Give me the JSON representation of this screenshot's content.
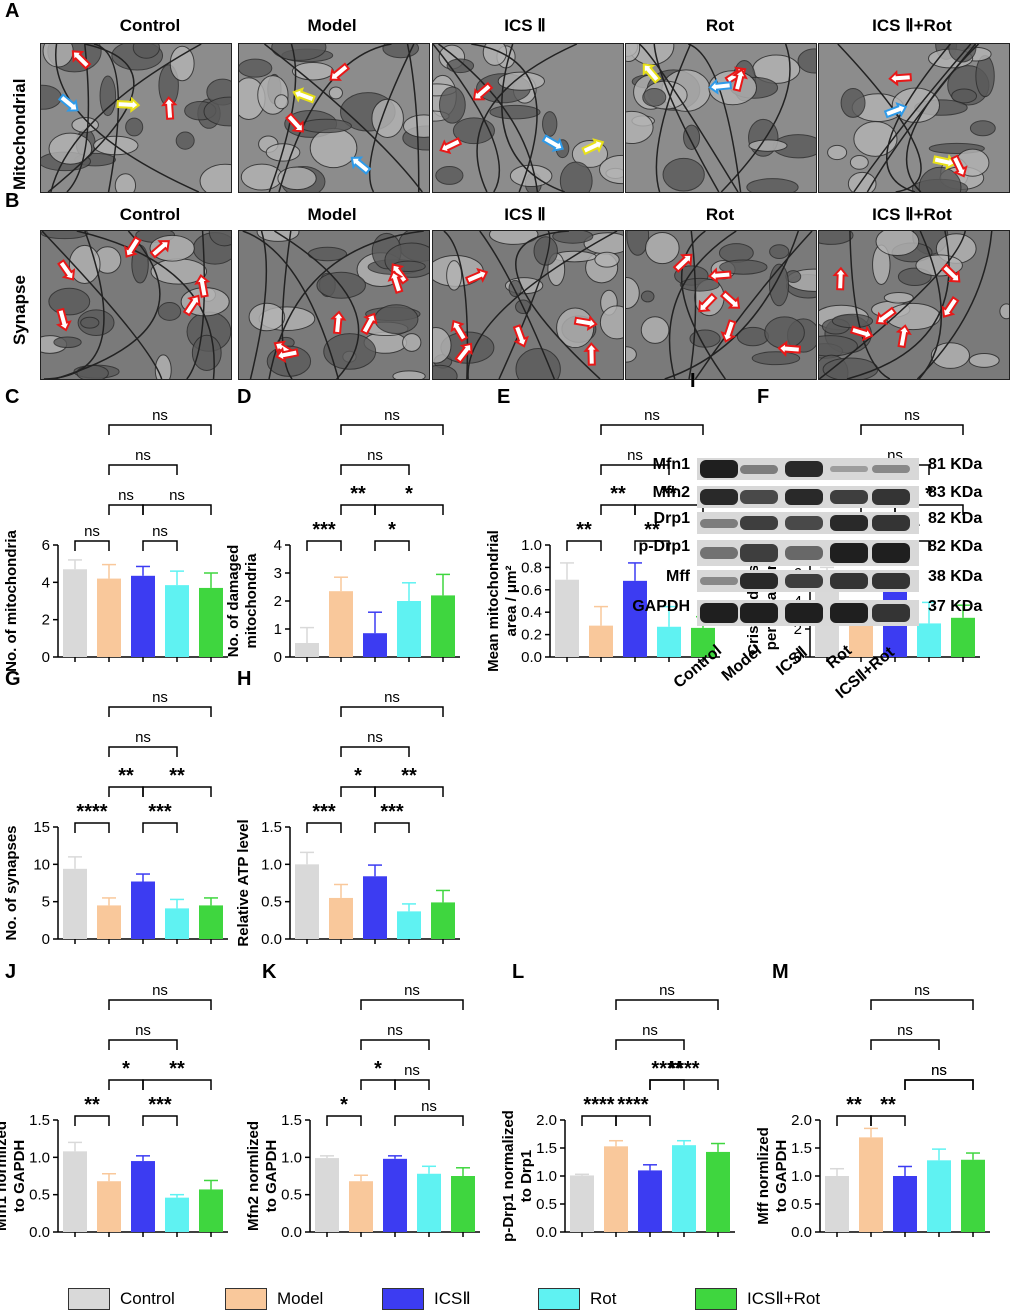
{
  "panel_letters": {
    "A": "A",
    "B": "B",
    "C": "C",
    "D": "D",
    "E": "E",
    "F": "F",
    "G": "G",
    "H": "H",
    "I": "I",
    "J": "J",
    "K": "K",
    "L": "L",
    "M": "M"
  },
  "groups": [
    "Control",
    "Model",
    "ICSⅡ",
    "Rot",
    "ICSⅡ+Rot"
  ],
  "colors": {
    "Control": "#d9d9d9",
    "Model": "#f9c89b",
    "ICSⅡ": "#3c3cf2",
    "Rot": "#5ff2f2",
    "ICSⅡ+Rot": "#3fd63f"
  },
  "micro_titles": [
    "Control",
    "Model",
    "ICS Ⅱ",
    "Rot",
    "ICS Ⅱ+Rot"
  ],
  "row_labels": {
    "A": "Mitochondrial",
    "B": "Synapse"
  },
  "wb": {
    "proteins": [
      "Mfn1",
      "Mfn2",
      "Drp1",
      "p-Drp1",
      "Mff",
      "GAPDH"
    ],
    "kda": [
      "81 KDa",
      "83 KDa",
      "82 KDa",
      "82 KDa",
      "38 KDa",
      "37 KDa"
    ],
    "lanes": [
      "Control",
      "Model",
      "ICSⅡ",
      "Rot",
      "ICSⅡ+Rot"
    ]
  },
  "legend": [
    "Control",
    "Model",
    "ICSⅡ",
    "Rot",
    "ICSⅡ+Rot"
  ],
  "chart_data": [
    {
      "id": "C",
      "type": "bar",
      "ylabel": "No. of mitochondria",
      "ylim": [
        0,
        6
      ],
      "yticks": [
        "0",
        "2",
        "4",
        "6"
      ],
      "values": [
        4.7,
        4.2,
        4.35,
        3.85,
        3.7
      ],
      "errors": [
        0.5,
        0.75,
        0.5,
        0.75,
        0.8
      ],
      "sig": [
        {
          "a": 0,
          "b": 1,
          "label": "ns"
        },
        {
          "a": 1,
          "b": 2,
          "label": "ns"
        },
        {
          "a": 2,
          "b": 3,
          "label": "ns"
        },
        {
          "a": 2,
          "b": 4,
          "label": "ns"
        },
        {
          "a": 1,
          "b": 3,
          "label": "ns"
        },
        {
          "a": 1,
          "b": 4,
          "label": "ns"
        }
      ]
    },
    {
      "id": "D",
      "type": "bar",
      "ylabel": "No. of damaged\nmitochondria",
      "ylim": [
        0,
        4
      ],
      "yticks": [
        "0",
        "1",
        "2",
        "3",
        "4"
      ],
      "values": [
        0.5,
        2.35,
        0.85,
        2.0,
        2.2
      ],
      "errors": [
        0.55,
        0.5,
        0.75,
        0.65,
        0.75
      ],
      "sig": [
        {
          "a": 0,
          "b": 1,
          "label": "***"
        },
        {
          "a": 1,
          "b": 2,
          "label": "**"
        },
        {
          "a": 2,
          "b": 3,
          "label": "*"
        },
        {
          "a": 2,
          "b": 4,
          "label": "*"
        },
        {
          "a": 1,
          "b": 3,
          "label": "ns"
        },
        {
          "a": 1,
          "b": 4,
          "label": "ns"
        }
      ]
    },
    {
      "id": "E",
      "type": "bar",
      "ylabel": "Mean mitochondrial\narea / μm²",
      "ylim": [
        0,
        1.0
      ],
      "yticks": [
        "0.0",
        "0.2",
        "0.4",
        "0.6",
        "0.8",
        "1.0"
      ],
      "values": [
        0.69,
        0.28,
        0.68,
        0.27,
        0.26
      ],
      "errors": [
        0.15,
        0.17,
        0.16,
        0.18,
        0.1
      ],
      "sig": [
        {
          "a": 0,
          "b": 1,
          "label": "**"
        },
        {
          "a": 1,
          "b": 2,
          "label": "**"
        },
        {
          "a": 2,
          "b": 3,
          "label": "**"
        },
        {
          "a": 2,
          "b": 4,
          "label": "**"
        },
        {
          "a": 1,
          "b": 3,
          "label": "ns"
        },
        {
          "a": 1,
          "b": 4,
          "label": "ns"
        }
      ]
    },
    {
      "id": "F",
      "type": "bar",
      "ylabel": "Cristae density\nper area / μm²",
      "ylim": [
        0,
        8
      ],
      "yticks": [
        "0",
        "2",
        "4",
        "6",
        "8"
      ],
      "values": [
        5.5,
        2.4,
        5.2,
        2.4,
        2.8
      ],
      "errors": [
        0.9,
        1.5,
        0.5,
        1.5,
        0.9
      ],
      "sig": [
        {
          "a": 0,
          "b": 1,
          "label": "**"
        },
        {
          "a": 1,
          "b": 2,
          "label": "**"
        },
        {
          "a": 2,
          "b": 3,
          "label": "**"
        },
        {
          "a": 2,
          "b": 4,
          "label": "*"
        },
        {
          "a": 1,
          "b": 3,
          "label": "ns"
        },
        {
          "a": 1,
          "b": 4,
          "label": "ns"
        }
      ]
    },
    {
      "id": "G",
      "type": "bar",
      "ylabel": "No. of synapses",
      "ylim": [
        0,
        15
      ],
      "yticks": [
        "0",
        "5",
        "10",
        "15"
      ],
      "values": [
        9.4,
        4.5,
        7.7,
        4.1,
        4.5
      ],
      "errors": [
        1.6,
        1.0,
        1.0,
        1.2,
        1.0
      ],
      "sig": [
        {
          "a": 0,
          "b": 1,
          "label": "****"
        },
        {
          "a": 1,
          "b": 2,
          "label": "**"
        },
        {
          "a": 2,
          "b": 3,
          "label": "***"
        },
        {
          "a": 2,
          "b": 4,
          "label": "**"
        },
        {
          "a": 1,
          "b": 3,
          "label": "ns"
        },
        {
          "a": 1,
          "b": 4,
          "label": "ns"
        }
      ]
    },
    {
      "id": "H",
      "type": "bar",
      "ylabel": "Relative ATP level",
      "ylim": [
        0,
        1.5
      ],
      "yticks": [
        "0.0",
        "0.5",
        "1.0",
        "1.5"
      ],
      "values": [
        1.0,
        0.55,
        0.84,
        0.37,
        0.49
      ],
      "errors": [
        0.16,
        0.18,
        0.15,
        0.1,
        0.16
      ],
      "sig": [
        {
          "a": 0,
          "b": 1,
          "label": "***"
        },
        {
          "a": 1,
          "b": 2,
          "label": "*"
        },
        {
          "a": 2,
          "b": 3,
          "label": "***"
        },
        {
          "a": 2,
          "b": 4,
          "label": "**"
        },
        {
          "a": 1,
          "b": 3,
          "label": "ns"
        },
        {
          "a": 1,
          "b": 4,
          "label": "ns"
        }
      ]
    },
    {
      "id": "J",
      "type": "bar",
      "ylabel": "Mfn1 normlized\nto GAPDH",
      "ylim": [
        0,
        1.5
      ],
      "yticks": [
        "0.0",
        "0.5",
        "1.0",
        "1.5"
      ],
      "values": [
        1.08,
        0.68,
        0.95,
        0.46,
        0.57
      ],
      "errors": [
        0.12,
        0.1,
        0.07,
        0.04,
        0.12
      ],
      "sig": [
        {
          "a": 0,
          "b": 1,
          "label": "**"
        },
        {
          "a": 1,
          "b": 2,
          "label": "*"
        },
        {
          "a": 2,
          "b": 3,
          "label": "***"
        },
        {
          "a": 2,
          "b": 4,
          "label": "**"
        },
        {
          "a": 1,
          "b": 3,
          "label": "ns"
        },
        {
          "a": 1,
          "b": 4,
          "label": "ns"
        }
      ]
    },
    {
      "id": "K",
      "type": "bar",
      "ylabel": "Mfn2 normlized\nto GAPDH",
      "ylim": [
        0,
        1.5
      ],
      "yticks": [
        "0.0",
        "0.5",
        "1.0",
        "1.5"
      ],
      "values": [
        0.99,
        0.68,
        0.98,
        0.78,
        0.75
      ],
      "errors": [
        0.03,
        0.08,
        0.04,
        0.1,
        0.11
      ],
      "sig": [
        {
          "a": 0,
          "b": 1,
          "label": "*"
        },
        {
          "a": 1,
          "b": 2,
          "label": "*"
        },
        {
          "a": 2,
          "b": 4,
          "label": "ns"
        },
        {
          "a": 2,
          "b": 3,
          "label": "ns"
        },
        {
          "a": 1,
          "b": 3,
          "label": "ns"
        },
        {
          "a": 1,
          "b": 4,
          "label": "ns"
        }
      ]
    },
    {
      "id": "L",
      "type": "bar",
      "ylabel": "p-Drp1 normalized\nto Drp1",
      "ylim": [
        0,
        2.0
      ],
      "yticks": [
        "0.0",
        "0.5",
        "1.0",
        "1.5",
        "2.0"
      ],
      "values": [
        1.01,
        1.53,
        1.1,
        1.55,
        1.43
      ],
      "errors": [
        0.02,
        0.1,
        0.1,
        0.08,
        0.15
      ],
      "sig": [
        {
          "a": 0,
          "b": 1,
          "label": "****"
        },
        {
          "a": 2,
          "b": 4,
          "label": "****"
        },
        {
          "a": 1,
          "b": 2,
          "label": "****"
        },
        {
          "a": 2,
          "b": 3,
          "label": "****"
        },
        {
          "a": 1,
          "b": 3,
          "label": "ns"
        },
        {
          "a": 1,
          "b": 4,
          "label": "ns"
        }
      ]
    },
    {
      "id": "M",
      "type": "bar",
      "ylabel": "Mff normlized\nto GAPDH",
      "ylim": [
        0,
        2.0
      ],
      "yticks": [
        "0.0",
        "0.5",
        "1.0",
        "1.5",
        "2.0"
      ],
      "values": [
        1.0,
        1.69,
        1.0,
        1.28,
        1.29
      ],
      "errors": [
        0.13,
        0.16,
        0.17,
        0.2,
        0.12
      ],
      "sig": [
        {
          "a": 0,
          "b": 1,
          "label": "**"
        },
        {
          "a": 2,
          "b": 4,
          "label": "ns"
        },
        {
          "a": 1,
          "b": 2,
          "label": "**"
        },
        {
          "a": 2,
          "b": 4,
          "label": "ns"
        },
        {
          "a": 1,
          "b": 3,
          "label": "ns"
        },
        {
          "a": 1,
          "b": 4,
          "label": "ns"
        }
      ]
    }
  ]
}
